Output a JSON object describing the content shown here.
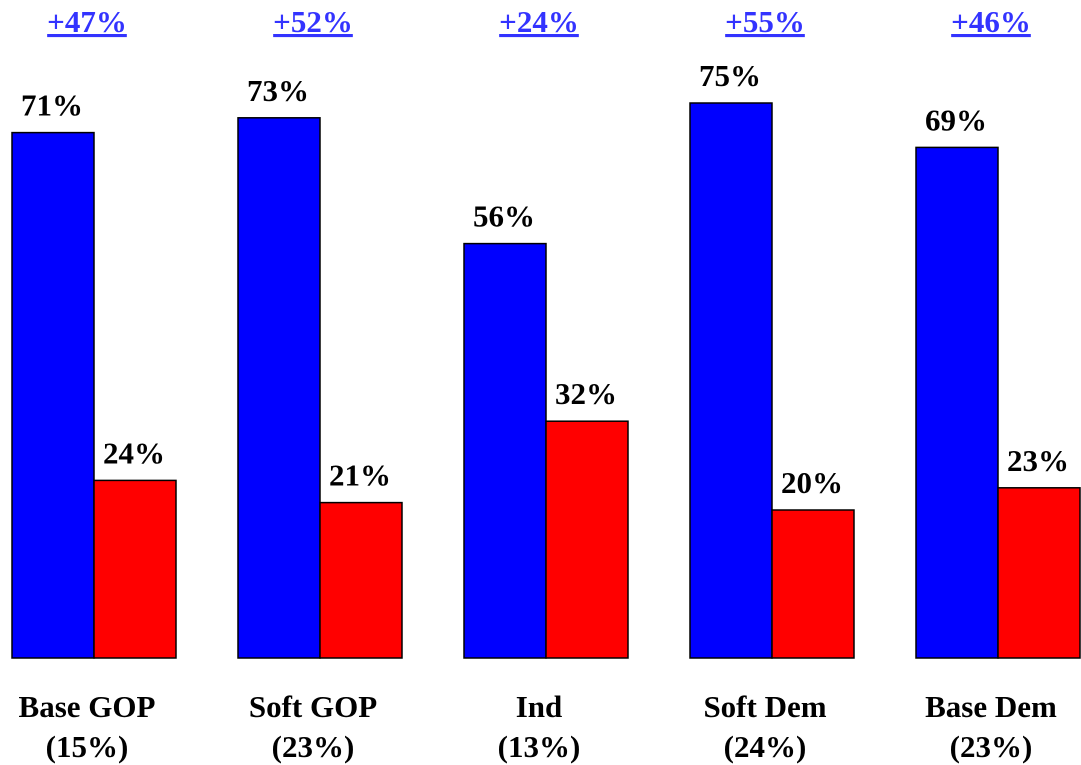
{
  "chart_data": {
    "type": "bar",
    "categories": [
      "Base GOP",
      "Soft GOP",
      "Ind",
      "Soft Dem",
      "Base Dem"
    ],
    "category_shares": [
      "(15%)",
      "(23%)",
      "(13%)",
      "(24%)",
      "(23%)"
    ],
    "series": [
      {
        "color": "#0000ff",
        "values": [
          71,
          73,
          56,
          75,
          69
        ],
        "labels": [
          "71%",
          "73%",
          "56%",
          "75%",
          "69%"
        ]
      },
      {
        "color": "#ff0000",
        "values": [
          24,
          21,
          32,
          20,
          23
        ],
        "labels": [
          "24%",
          "21%",
          "32%",
          "20%",
          "23%"
        ]
      }
    ],
    "differences": [
      "+47%",
      "+52%",
      "+24%",
      "+55%",
      "+46%"
    ],
    "difference_color": "#3333ff",
    "ylim": [
      0,
      100
    ],
    "grid": false,
    "legend": "none"
  }
}
